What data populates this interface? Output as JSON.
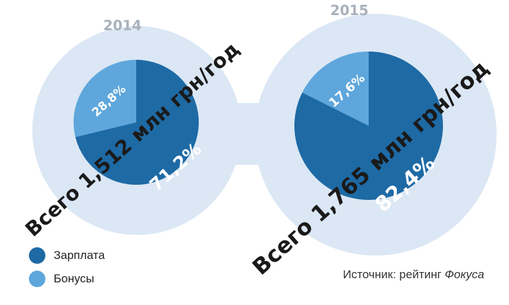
{
  "colors": {
    "background_blob": "#dbe7f4",
    "salary": "#1e6aa5",
    "bonus": "#5ea6dc",
    "year_label": "#a9b1bb",
    "text_dark": "#1a1a1a",
    "pct_on_dark": "#ffffff"
  },
  "chart_data": [
    {
      "type": "pie",
      "title": "2014",
      "total_label": "Всего 1,512 млн грн/год",
      "slices": [
        {
          "name": "Зарплата",
          "value": 71.2,
          "label": "71,2%"
        },
        {
          "name": "Бонусы",
          "value": 28.8,
          "label": "28,8%"
        }
      ]
    },
    {
      "type": "pie",
      "title": "2015",
      "total_label": "Всего 1,765 млн грн/год",
      "slices": [
        {
          "name": "Зарплата",
          "value": 82.4,
          "label": "82,4%"
        },
        {
          "name": "Бонусы",
          "value": 17.6,
          "label": "17,6%"
        }
      ]
    }
  ],
  "legend": {
    "items": [
      {
        "label": "Зарплата",
        "color_key": "salary"
      },
      {
        "label": "Бонусы",
        "color_key": "bonus"
      }
    ]
  },
  "source": {
    "prefix": "Источник: рейтинг ",
    "name": "Фокуса"
  }
}
